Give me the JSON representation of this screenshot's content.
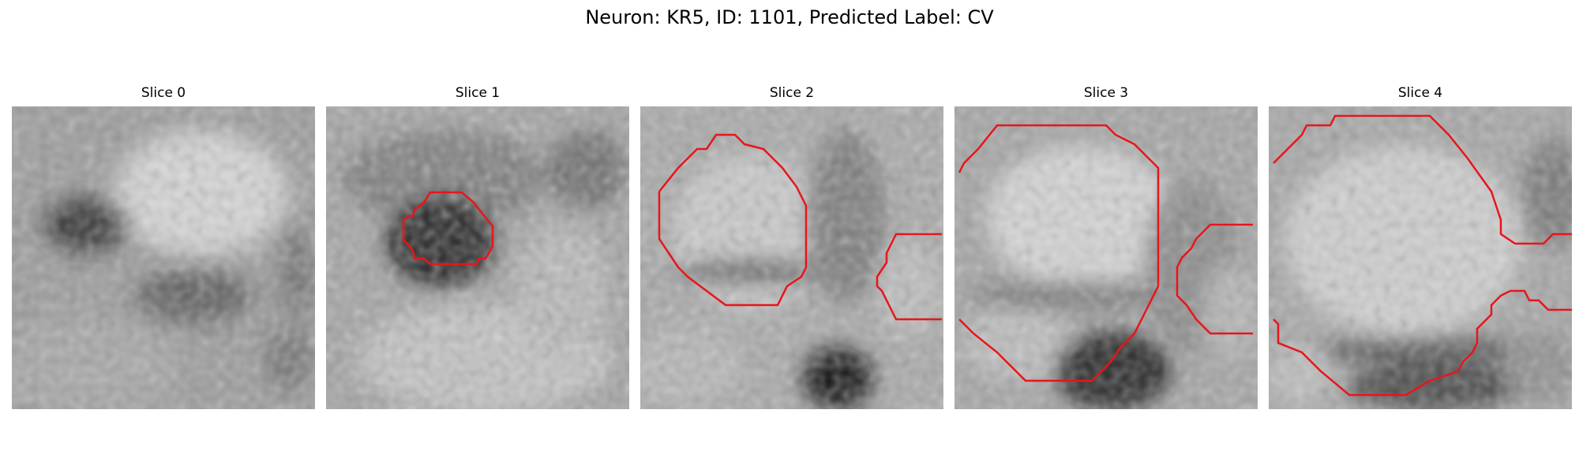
{
  "figure": {
    "title": "Neuron: KR5, ID: 1101, Predicted Label: CV"
  },
  "panels": [
    {
      "title": "Slice 0",
      "has_contour": false
    },
    {
      "title": "Slice 1",
      "has_contour": true
    },
    {
      "title": "Slice 2",
      "has_contour": true
    },
    {
      "title": "Slice 3",
      "has_contour": true
    },
    {
      "title": "Slice 4",
      "has_contour": true
    }
  ],
  "colors": {
    "contour": "#e8151b",
    "background": "#ffffff",
    "image_colormap": "grayscale"
  }
}
